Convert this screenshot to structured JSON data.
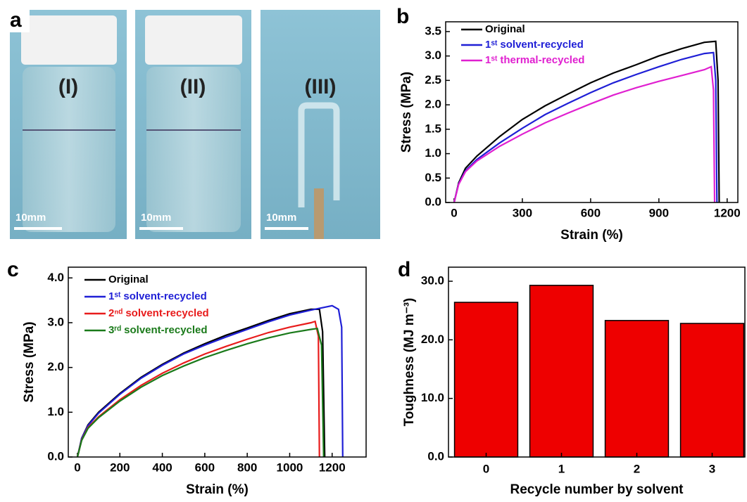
{
  "figure": {
    "panels": [
      "a",
      "b",
      "c",
      "d"
    ],
    "photos": [
      {
        "label": "(I)",
        "scale": "10mm"
      },
      {
        "label": "(II)",
        "scale": "10mm"
      },
      {
        "label": "(III)",
        "scale": "10mm"
      }
    ]
  },
  "chart_data": [
    {
      "type": "line",
      "x_label": "Strain (%)",
      "y_label": "Stress (MPa)",
      "xlim": [
        -37,
        1247
      ],
      "xticks": [
        0,
        300,
        600,
        900,
        1200
      ],
      "ylim": [
        0,
        3.7
      ],
      "yticks": [
        {
          "value": 0,
          "label": "0.0"
        },
        {
          "value": 0.5,
          "label": "0.5"
        },
        {
          "value": 1,
          "label": "1.0"
        },
        {
          "value": 1.5,
          "label": "1.5"
        },
        {
          "value": 2,
          "label": "2.0"
        },
        {
          "value": 2.5,
          "label": "2.5"
        },
        {
          "value": 3,
          "label": "3.0"
        },
        {
          "value": 3.5,
          "label": "3.5"
        }
      ],
      "series": [
        {
          "name": "Original",
          "color": "#000000",
          "x": [
            0,
            20,
            50,
            100,
            200,
            300,
            400,
            500,
            600,
            700,
            800,
            900,
            1000,
            1100,
            1150,
            1160,
            1165
          ],
          "values": [
            0,
            0.4,
            0.7,
            0.95,
            1.35,
            1.7,
            1.98,
            2.22,
            2.45,
            2.65,
            2.82,
            3.0,
            3.15,
            3.28,
            3.3,
            2.5,
            0
          ]
        },
        {
          "name": "1ˢᵗ solvent-recycled",
          "color": "#1f1fd6",
          "x": [
            0,
            20,
            50,
            100,
            200,
            300,
            400,
            500,
            600,
            700,
            800,
            900,
            1000,
            1100,
            1140,
            1150,
            1155
          ],
          "values": [
            0,
            0.38,
            0.65,
            0.88,
            1.22,
            1.52,
            1.8,
            2.03,
            2.25,
            2.45,
            2.62,
            2.78,
            2.93,
            3.05,
            3.07,
            2.5,
            0
          ]
        },
        {
          "name": "1ˢᵗ thermal-recycled",
          "color": "#e020d0",
          "x": [
            0,
            20,
            50,
            100,
            200,
            300,
            400,
            500,
            600,
            700,
            800,
            900,
            1000,
            1100,
            1130,
            1140,
            1145
          ],
          "values": [
            0,
            0.37,
            0.63,
            0.85,
            1.15,
            1.4,
            1.63,
            1.83,
            2.02,
            2.2,
            2.35,
            2.48,
            2.6,
            2.72,
            2.78,
            2.3,
            0
          ]
        }
      ]
    },
    {
      "type": "line",
      "x_label": "Strain (%)",
      "y_label": "Stress (MPa)",
      "xlim": [
        -43,
        1360
      ],
      "xticks": [
        0,
        200,
        400,
        600,
        800,
        1000,
        1200
      ],
      "ylim": [
        0,
        4.24
      ],
      "yticks": [
        {
          "value": 0,
          "label": "0.0"
        },
        {
          "value": 1,
          "label": "1.0"
        },
        {
          "value": 2,
          "label": "2.0"
        },
        {
          "value": 3,
          "label": "3.0"
        },
        {
          "value": 4,
          "label": "4.0"
        }
      ],
      "series": [
        {
          "name": "Original",
          "color": "#000000",
          "x": [
            0,
            20,
            50,
            100,
            200,
            300,
            400,
            500,
            600,
            700,
            800,
            900,
            1000,
            1100,
            1140,
            1155,
            1165
          ],
          "values": [
            0,
            0.42,
            0.72,
            1.0,
            1.42,
            1.78,
            2.07,
            2.32,
            2.53,
            2.72,
            2.88,
            3.05,
            3.2,
            3.3,
            3.3,
            2.8,
            0
          ]
        },
        {
          "name": "1ˢᵗ solvent-recycled",
          "color": "#1f1fd6",
          "x": [
            0,
            20,
            50,
            100,
            200,
            300,
            400,
            500,
            600,
            700,
            800,
            900,
            1000,
            1100,
            1200,
            1230,
            1245,
            1250
          ],
          "values": [
            0,
            0.41,
            0.7,
            0.98,
            1.4,
            1.76,
            2.05,
            2.3,
            2.5,
            2.68,
            2.85,
            3.02,
            3.17,
            3.28,
            3.38,
            3.3,
            2.9,
            0
          ]
        },
        {
          "name": "2ⁿᵈ solvent-recycled",
          "color": "#e81c1c",
          "x": [
            0,
            20,
            50,
            100,
            200,
            300,
            400,
            500,
            600,
            700,
            800,
            900,
            1000,
            1100,
            1120,
            1135,
            1140
          ],
          "values": [
            0,
            0.38,
            0.66,
            0.9,
            1.28,
            1.6,
            1.87,
            2.1,
            2.3,
            2.47,
            2.63,
            2.78,
            2.9,
            3.0,
            3.03,
            2.7,
            0
          ]
        },
        {
          "name": "3ʳᵈ solvent-recycled",
          "color": "#1a7a1a",
          "x": [
            0,
            20,
            50,
            100,
            200,
            300,
            400,
            500,
            600,
            700,
            800,
            900,
            1000,
            1100,
            1130,
            1150,
            1160
          ],
          "values": [
            0,
            0.37,
            0.64,
            0.88,
            1.25,
            1.56,
            1.82,
            2.03,
            2.22,
            2.38,
            2.53,
            2.66,
            2.77,
            2.85,
            2.87,
            2.5,
            0
          ]
        }
      ]
    },
    {
      "type": "bar",
      "x_label": "Recycle number by solvent",
      "y_label": "Toughness (MJ m⁻³)",
      "categories": [
        "0",
        "1",
        "2",
        "3"
      ],
      "values": [
        26.4,
        29.3,
        23.3,
        22.8
      ],
      "color": "#ee0000",
      "ylim": [
        0,
        32.4
      ],
      "yticks": [
        {
          "value": 0,
          "label": "0.0"
        },
        {
          "value": 10,
          "label": "10.0"
        },
        {
          "value": 20,
          "label": "20.0"
        },
        {
          "value": 30,
          "label": "30.0"
        }
      ]
    }
  ]
}
